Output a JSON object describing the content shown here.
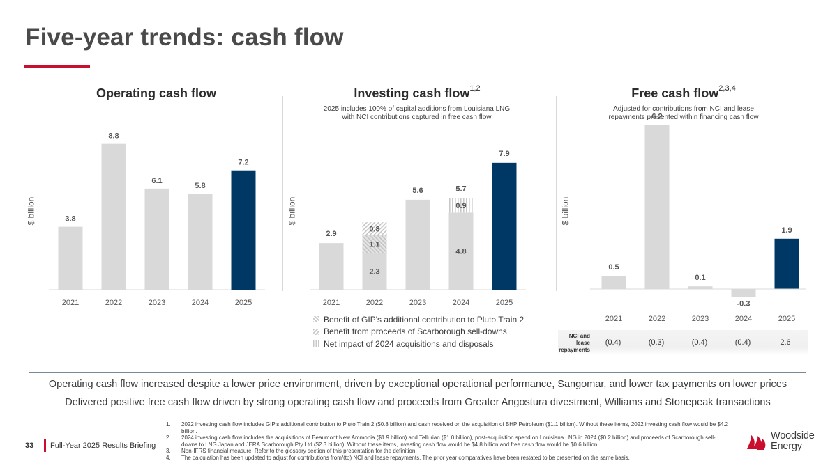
{
  "page": {
    "title": "Five-year trends: cash flow",
    "page_number": "33",
    "briefing": "Full-Year 2025 Results Briefing",
    "brand_color": "#c8102e",
    "logo_text_line1": "Woodside",
    "logo_text_line2": "Energy"
  },
  "charts": {
    "operating": {
      "title": "Operating cash flow",
      "ylabel": "$ billion"
    },
    "investing": {
      "title": "Investing cash flow",
      "title_sup": "1,2",
      "subtitle_line1": "2025 includes 100% of capital additions from Louisiana LNG",
      "subtitle_line2": "with NCI contributions captured in free cash flow",
      "ylabel": "$ billion",
      "legend": [
        "Benefit of GIP's additional contribution to Pluto Train 2",
        "Benefit from proceeds of Scarborough sell-downs",
        "Net impact of 2024 acquisitions and disposals"
      ]
    },
    "free": {
      "title": "Free cash flow",
      "title_sup": "2,3,4",
      "subtitle_line1": "Adjusted for contributions from NCI and lease",
      "subtitle_line2": "repayments presented within financing cash flow",
      "ylabel": "$ billion",
      "nci_label_line1": "NCI and",
      "nci_label_line2": "lease",
      "nci_label_line3": "repayments",
      "nci_values": [
        "(0.4)",
        "(0.3)",
        "(0.4)",
        "(0.4)",
        "2.6"
      ]
    }
  },
  "chart_data": [
    {
      "id": "operating",
      "type": "bar",
      "title": "Operating cash flow",
      "ylabel": "$ billion",
      "categories": [
        "2021",
        "2022",
        "2023",
        "2024",
        "2025"
      ],
      "values": [
        3.8,
        8.8,
        6.1,
        5.8,
        7.2
      ],
      "labels": [
        "3.8",
        "8.8",
        "6.1",
        "5.8",
        "7.2"
      ],
      "highlight_index": 4,
      "ylim": [
        0,
        9.5
      ],
      "colors": {
        "base": "#d9d9d9",
        "highlight": "#003865"
      }
    },
    {
      "id": "investing",
      "type": "bar",
      "stacked": true,
      "title": "Investing cash flow",
      "ylabel": "$ billion",
      "categories": [
        "2021",
        "2022",
        "2023",
        "2024",
        "2025"
      ],
      "totals": [
        2.9,
        null,
        5.6,
        5.7,
        7.9
      ],
      "total_labels": [
        "2.9",
        "",
        "5.6",
        "5.7",
        "7.9"
      ],
      "stacks": [
        [
          {
            "value": 2.9,
            "pattern": "solid"
          }
        ],
        [
          {
            "value": 2.3,
            "pattern": "solid",
            "label": "2.3"
          },
          {
            "value": 1.1,
            "pattern": "scar",
            "label": "1.1"
          },
          {
            "value": 0.8,
            "pattern": "gip",
            "label": "0.8"
          }
        ],
        [
          {
            "value": 5.6,
            "pattern": "solid"
          }
        ],
        [
          {
            "value": 4.8,
            "pattern": "solid",
            "label": "4.8"
          },
          {
            "value": 0.9,
            "pattern": "net",
            "label": "0.9"
          }
        ],
        [
          {
            "value": 7.9,
            "pattern": "solid"
          }
        ]
      ],
      "highlight_index": 4,
      "ylim": [
        0,
        8.5
      ],
      "colors": {
        "base": "#d9d9d9",
        "highlight": "#003865"
      }
    },
    {
      "id": "free",
      "type": "bar",
      "title": "Free cash flow",
      "ylabel": "$ billion",
      "categories": [
        "2021",
        "2022",
        "2023",
        "2024",
        "2025"
      ],
      "values": [
        0.5,
        6.2,
        0.1,
        -0.3,
        1.9
      ],
      "labels": [
        "0.5",
        "6.2",
        "0.1",
        "-0.3",
        "1.9"
      ],
      "highlight_index": 4,
      "ylim": [
        -0.6,
        7.0
      ],
      "colors": {
        "base": "#d9d9d9",
        "highlight": "#003865"
      }
    }
  ],
  "messages": [
    "Operating cash flow increased despite a lower price environment, driven by exceptional operational performance, Sangomar, and lower tax payments on lower prices",
    "Delivered positive free cash flow driven by strong operating cash flow and proceeds from Greater Angostura divestment, Williams and Stonepeak transactions"
  ],
  "footnotes": [
    {
      "num": "1.",
      "text": "2022 investing cash flow includes GIP's additional contribution to Pluto Train 2 ($0.8 billion) and cash received on the acquisition of BHP Petroleum ($1.1 billion). Without these items, 2022 investing cash flow would be $4.2 billion."
    },
    {
      "num": "2.",
      "text": "2024 investing cash flow includes the acquisitions of Beaumont New Ammonia ($1.9 billion) and Tellurian ($1.0 billion), post-acquisition spend on Louisiana LNG in 2024 ($0.2 billion) and proceeds of Scarborough sell-downs to LNG Japan and JERA Scarborough Pty Ltd ($2.3 billion). Without these items, investing cash flow would be $4.8 billion and free cash flow would be $0.6 billion."
    },
    {
      "num": "3.",
      "text": "Non-IFRS financial measure. Refer to the glossary section of this presentation for the definition."
    },
    {
      "num": "4.",
      "text": "The calculation has been updated to adjust for contributions from/(to) NCI and lease repayments. The prior year comparatives have been restated to be presented on the same basis."
    }
  ]
}
